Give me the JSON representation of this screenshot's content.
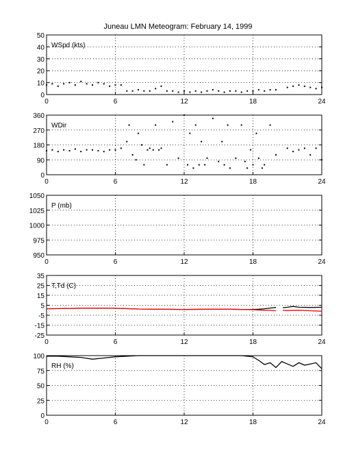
{
  "title": "Juneau LMN Meteogram:  February 14, 1999",
  "chart_data": [
    {
      "type": "scatter",
      "label": "WSpd (kts)",
      "x_ticks": [
        "0",
        "6",
        "12",
        "18",
        "24"
      ],
      "y_ticks": [
        "0",
        "10",
        "20",
        "30",
        "40",
        "50"
      ],
      "xlim": [
        0,
        24
      ],
      "ylim": [
        0,
        50
      ],
      "grid": true,
      "series": [
        {
          "color": "#000000",
          "x": [
            0.0,
            0.5,
            1.0,
            1.5,
            2.0,
            2.5,
            3.0,
            3.5,
            4.0,
            4.5,
            5.0,
            5.5,
            6.0,
            6.5,
            7.0,
            7.5,
            8.0,
            8.5,
            9.0,
            9.5,
            10.0,
            10.5,
            11.0,
            11.5,
            12.0,
            12.5,
            13.0,
            13.5,
            14.0,
            14.5,
            15.0,
            15.5,
            16.0,
            16.5,
            17.0,
            17.5,
            18.0,
            18.5,
            19.0,
            19.5,
            20.0,
            20.5,
            21.0,
            21.5,
            22.0,
            22.5,
            23.0,
            23.5,
            24.0
          ],
          "y": [
            8,
            9,
            7,
            9,
            10,
            8,
            11,
            9,
            8,
            10,
            9,
            7,
            8,
            8,
            3,
            3,
            4,
            3,
            3,
            5,
            7,
            3,
            3,
            2,
            3,
            2,
            3,
            2,
            3,
            4,
            3,
            2,
            3,
            3,
            2,
            3,
            3,
            4,
            3,
            4,
            4,
            null,
            6,
            7,
            8,
            7,
            6,
            5,
            6
          ]
        }
      ]
    },
    {
      "type": "scatter",
      "label": "WDir",
      "x_ticks": [
        "0",
        "6",
        "12",
        "18",
        "24"
      ],
      "y_ticks": [
        "0",
        "90",
        "180",
        "270",
        "360"
      ],
      "xlim": [
        0,
        24
      ],
      "ylim": [
        0,
        360
      ],
      "grid": true,
      "series": [
        {
          "color": "#000000",
          "x": [
            0.0,
            0.5,
            1.0,
            1.5,
            2.0,
            2.5,
            3.0,
            3.5,
            4.0,
            4.5,
            5.0,
            5.5,
            6.0,
            6.5,
            7.0,
            7.2,
            7.5,
            7.8,
            8.0,
            8.3,
            8.5,
            8.8,
            9.0,
            9.3,
            9.5,
            9.8,
            10.0,
            10.5,
            11.0,
            11.5,
            12.0,
            12.3,
            12.5,
            12.8,
            13.0,
            13.3,
            13.5,
            13.8,
            14.0,
            14.5,
            15.0,
            15.3,
            15.5,
            15.8,
            16.0,
            16.5,
            17.0,
            17.3,
            17.5,
            17.8,
            18.0,
            18.3,
            18.5,
            18.8,
            19.0,
            19.5,
            20.0,
            20.5,
            21.0,
            21.5,
            22.0,
            22.5,
            23.0,
            23.5,
            24.0
          ],
          "y": [
            145,
            150,
            140,
            150,
            145,
            155,
            140,
            150,
            150,
            145,
            140,
            150,
            150,
            160,
            200,
            300,
            120,
            90,
            250,
            180,
            60,
            150,
            160,
            150,
            300,
            150,
            160,
            60,
            320,
            100,
            360,
            60,
            250,
            40,
            300,
            60,
            200,
            60,
            100,
            340,
            80,
            200,
            60,
            300,
            40,
            100,
            300,
            80,
            40,
            150,
            60,
            250,
            100,
            40,
            60,
            300,
            120,
            null,
            160,
            140,
            150,
            160,
            120,
            160,
            90
          ]
        }
      ]
    },
    {
      "type": "scatter",
      "label": "P (mb)",
      "x_ticks": [
        "0",
        "6",
        "12",
        "18",
        "24"
      ],
      "y_ticks": [
        "950",
        "975",
        "1000",
        "1025",
        "1050"
      ],
      "xlim": [
        0,
        24
      ],
      "ylim": [
        950,
        1050
      ],
      "grid": true,
      "series": []
    },
    {
      "type": "line",
      "label": "T,Td (C)",
      "x_ticks": [
        "0",
        "6",
        "12",
        "18",
        "24"
      ],
      "y_ticks": [
        "-25",
        "-15",
        "-5",
        "5",
        "15",
        "25",
        "35"
      ],
      "xlim": [
        0,
        24
      ],
      "ylim": [
        -25,
        35
      ],
      "grid": true,
      "series": [
        {
          "color": "#000000",
          "x": [
            0,
            2,
            4,
            6,
            8,
            10,
            12,
            14,
            16,
            17,
            18,
            18.5,
            19,
            19.5,
            20,
            20.3,
            20.6,
            21,
            21.5,
            22,
            23,
            24
          ],
          "y": [
            1.5,
            1.8,
            2.2,
            2.0,
            1.2,
            1.0,
            0.8,
            1.0,
            1.0,
            0.8,
            0.8,
            1.0,
            1.5,
            2.2,
            2.8,
            null,
            2.5,
            3.0,
            3.8,
            3.0,
            2.8,
            3.0
          ]
        },
        {
          "color": "#ff0000",
          "x": [
            0,
            2,
            4,
            6,
            8,
            10,
            12,
            14,
            16,
            17,
            18,
            18.5,
            19,
            19.5,
            20,
            20.3,
            20.6,
            21,
            22,
            23,
            24
          ],
          "y": [
            1.5,
            1.8,
            2.2,
            2.0,
            1.2,
            1.0,
            0.8,
            1.0,
            1.0,
            0.8,
            0.5,
            0.2,
            0.0,
            -0.2,
            -0.5,
            null,
            0.0,
            -0.3,
            0.0,
            -0.5,
            -1.0
          ]
        }
      ]
    },
    {
      "type": "line",
      "label": "RH (%)",
      "x_ticks": [
        "0",
        "6",
        "12",
        "18",
        "24"
      ],
      "y_ticks": [
        "0",
        "25",
        "50",
        "75",
        "100"
      ],
      "xlim": [
        0,
        24
      ],
      "ylim": [
        0,
        100
      ],
      "grid": true,
      "series": [
        {
          "color": "#000000",
          "x": [
            0,
            1,
            2,
            3,
            4,
            5,
            6,
            7,
            8,
            9,
            10,
            11,
            12,
            13,
            14,
            15,
            16,
            17,
            18,
            18.5,
            19,
            19.5,
            20,
            20.5,
            21,
            21.5,
            22,
            22.5,
            23,
            23.5,
            24
          ],
          "y": [
            99,
            99,
            98,
            97,
            94,
            96,
            98,
            99,
            100,
            100,
            100,
            100,
            100,
            100,
            100,
            100,
            100,
            100,
            98,
            92,
            85,
            88,
            80,
            90,
            86,
            82,
            88,
            84,
            86,
            88,
            78
          ]
        }
      ]
    }
  ]
}
